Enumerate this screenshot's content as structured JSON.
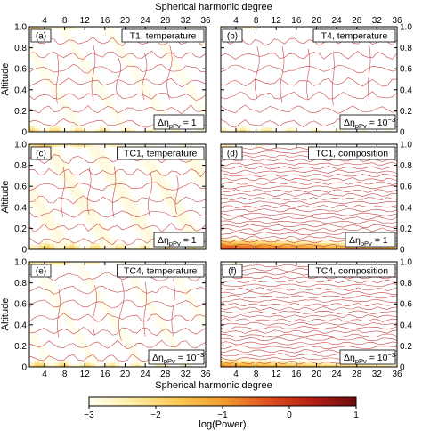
{
  "chart_data": {
    "type": "heatmap",
    "top_xlabel": "Spherical harmonic degree",
    "bottom_xlabel": "Spherical harmonic degree",
    "left_ylabel": "Altitude",
    "right_ylabel": "Altitude",
    "xlim": [
      1,
      36
    ],
    "ylim": [
      0,
      1
    ],
    "x_ticks": [
      4,
      8,
      12,
      16,
      20,
      24,
      28,
      32,
      36
    ],
    "y_ticks": [
      0,
      0.2,
      0.4,
      0.6,
      0.8,
      1.0
    ],
    "y_tick_labels": [
      "0",
      "0.2",
      "0.4",
      "0.6",
      "0.8",
      "1.0"
    ],
    "colorbar": {
      "label": "log(Power)",
      "range": [
        -3,
        1
      ],
      "ticks": [
        -3,
        -2,
        -1,
        0,
        1
      ],
      "tick_labels": [
        "−3",
        "−2",
        "−1",
        "0",
        "1"
      ],
      "colors": [
        "#fffff0",
        "#fde9a0",
        "#f9c74f",
        "#f39b2d",
        "#e2501b",
        "#b81d13",
        "#6e0b0b"
      ]
    },
    "contour_color": "#c84646",
    "panels": [
      {
        "label": "(a)",
        "title": "T1, temperature",
        "eta_exponent": "",
        "eta_value": "1",
        "bottom_level": -1.9,
        "top_level": -2.1,
        "interior_level": -3.2,
        "contour_density": "sparse"
      },
      {
        "label": "(b)",
        "title": "T4, temperature",
        "eta_exponent": "-3",
        "eta_value": "10",
        "bottom_level": -2.1,
        "top_level": -2.4,
        "interior_level": -3.3,
        "contour_density": "sparse"
      },
      {
        "label": "(c)",
        "title": "TC1, temperature",
        "eta_exponent": "",
        "eta_value": "1",
        "bottom_level": -1.6,
        "top_level": -1.7,
        "interior_level": -3.1,
        "contour_density": "sparse"
      },
      {
        "label": "(d)",
        "title": "TC1, composition",
        "eta_exponent": "",
        "eta_value": "1",
        "bottom_level": 0.3,
        "top_level": -2.4,
        "interior_level": -3.4,
        "contour_density": "dense"
      },
      {
        "label": "(e)",
        "title": "TC4, temperature",
        "eta_exponent": "-3",
        "eta_value": "10",
        "bottom_level": -1.8,
        "top_level": -1.9,
        "interior_level": -3.2,
        "contour_density": "sparse"
      },
      {
        "label": "(f)",
        "title": "TC4, composition",
        "eta_exponent": "-3",
        "eta_value": "10",
        "bottom_level": -0.6,
        "top_level": -2.6,
        "interior_level": -3.4,
        "contour_density": "dense"
      }
    ]
  }
}
